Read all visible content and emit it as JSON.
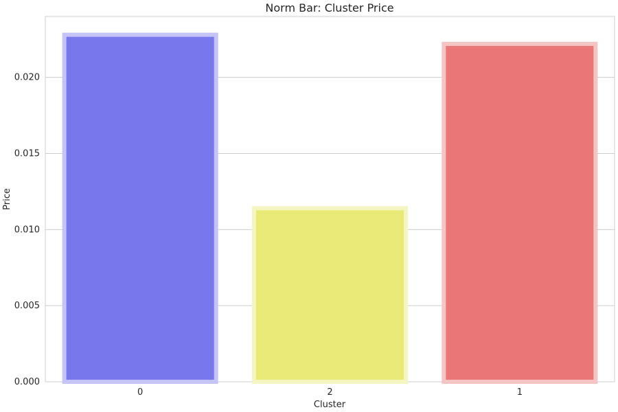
{
  "chart_data": {
    "type": "bar",
    "title": "Norm Bar: Cluster Price",
    "xlabel": "Cluster",
    "ylabel": "Price",
    "categories": [
      "0",
      "2",
      "1"
    ],
    "values": [
      0.0228,
      0.0114,
      0.0222
    ],
    "colors": [
      "#7878ec",
      "#e9e977",
      "#ea7777"
    ],
    "edge_colors": [
      "#c4c4f6",
      "#f5f5c2",
      "#f5c4c4"
    ],
    "ylim": [
      0,
      0.024
    ],
    "yticks": [
      0.0,
      0.005,
      0.01,
      0.015,
      0.02
    ],
    "ytick_labels": [
      "0.000",
      "0.005",
      "0.010",
      "0.015",
      "0.020"
    ],
    "grid": true,
    "legend": "none"
  }
}
